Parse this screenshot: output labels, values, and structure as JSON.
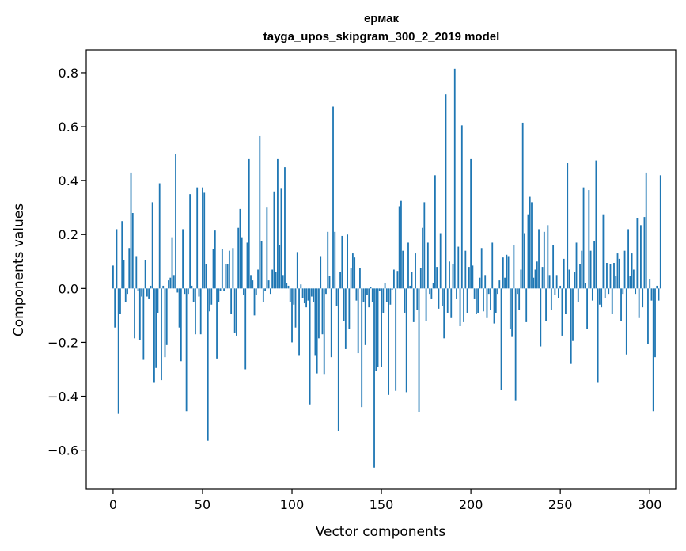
{
  "chart_data": {
    "type": "bar",
    "title": "ермак",
    "subtitle": "tayga_upos_skipgram_300_2_2019 model",
    "xlabel": "Vector components",
    "ylabel": "Components values",
    "xlim": [
      -15,
      314.5
    ],
    "ylim": [
      -0.745,
      0.885
    ],
    "xticks": [
      0,
      50,
      100,
      150,
      200,
      250,
      300
    ],
    "yticks": [
      -0.6,
      -0.4,
      -0.2,
      0.0,
      0.2,
      0.4,
      0.6,
      0.8
    ],
    "ytick_labels": [
      "−0.6",
      "−0.4",
      "−0.2",
      "0.0",
      "0.2",
      "0.4",
      "0.6",
      "0.8"
    ],
    "bar_color": "#1f77b4",
    "values": [
      0.085,
      -0.145,
      0.22,
      -0.465,
      -0.095,
      0.25,
      0.105,
      -0.05,
      -0.02,
      0.15,
      0.43,
      0.28,
      -0.185,
      0.12,
      -0.01,
      -0.19,
      -0.03,
      -0.265,
      0.105,
      -0.03,
      -0.04,
      0.01,
      0.32,
      -0.35,
      -0.295,
      -0.09,
      0.39,
      -0.34,
      0.01,
      -0.255,
      -0.21,
      0.03,
      0.04,
      0.19,
      0.05,
      0.5,
      -0.015,
      -0.145,
      -0.27,
      0.22,
      -0.02,
      -0.455,
      -0.02,
      0.35,
      0.01,
      -0.05,
      -0.17,
      0.375,
      -0.03,
      -0.17,
      0.375,
      0.355,
      0.09,
      -0.565,
      -0.085,
      -0.06,
      0.145,
      0.215,
      -0.26,
      -0.05,
      -0.01,
      0.145,
      -0.01,
      0.09,
      0.09,
      0.14,
      -0.095,
      0.15,
      -0.165,
      -0.175,
      0.225,
      0.295,
      0.19,
      -0.025,
      -0.3,
      0.17,
      0.48,
      0.05,
      0.03,
      -0.1,
      -0.025,
      0.07,
      0.565,
      0.175,
      -0.05,
      -0.01,
      0.3,
      0.03,
      -0.02,
      0.07,
      0.36,
      0.06,
      0.48,
      0.16,
      0.37,
      0.05,
      0.45,
      0.02,
      0.01,
      -0.05,
      -0.2,
      -0.06,
      -0.145,
      0.135,
      -0.25,
      0.015,
      -0.035,
      -0.055,
      -0.07,
      -0.045,
      -0.43,
      -0.03,
      -0.05,
      -0.25,
      -0.315,
      -0.185,
      0.12,
      -0.17,
      -0.32,
      -0.02,
      0.21,
      0.045,
      -0.255,
      0.675,
      0.21,
      -0.065,
      -0.53,
      0.06,
      0.195,
      -0.12,
      -0.225,
      0.2,
      -0.15,
      0.075,
      0.13,
      0.115,
      -0.045,
      -0.24,
      0.075,
      -0.44,
      -0.05,
      -0.21,
      -0.025,
      -0.07,
      0.005,
      -0.05,
      -0.665,
      -0.305,
      -0.29,
      -0.01,
      -0.29,
      -0.09,
      0.02,
      -0.05,
      -0.395,
      -0.06,
      -0.005,
      0.07,
      -0.38,
      0.065,
      0.305,
      0.325,
      0.14,
      -0.09,
      -0.385,
      0.17,
      0.01,
      0.06,
      -0.125,
      0.13,
      -0.08,
      -0.46,
      0.075,
      0.225,
      0.32,
      -0.12,
      0.17,
      -0.02,
      -0.04,
      0.02,
      0.42,
      0.08,
      -0.075,
      0.205,
      -0.065,
      -0.185,
      0.72,
      -0.09,
      0.1,
      -0.11,
      0.09,
      0.815,
      -0.04,
      0.155,
      -0.14,
      0.605,
      -0.125,
      0.14,
      -0.09,
      0.08,
      0.48,
      0.085,
      -0.04,
      -0.095,
      -0.09,
      0.04,
      0.15,
      -0.085,
      0.05,
      -0.11,
      -0.02,
      -0.08,
      0.17,
      -0.13,
      -0.09,
      -0.02,
      0.03,
      -0.375,
      0.115,
      0.04,
      0.125,
      0.12,
      -0.15,
      -0.18,
      0.16,
      -0.415,
      -0.02,
      -0.08,
      0.07,
      0.615,
      0.205,
      -0.125,
      0.275,
      0.34,
      0.32,
      0.04,
      0.07,
      0.1,
      0.22,
      -0.215,
      0.08,
      0.21,
      -0.12,
      0.235,
      0.05,
      -0.08,
      0.16,
      -0.025,
      0.05,
      -0.035,
      0.01,
      -0.175,
      0.11,
      -0.095,
      0.465,
      0.07,
      -0.28,
      -0.195,
      0.06,
      0.17,
      -0.05,
      0.09,
      0.14,
      0.375,
      0.02,
      -0.15,
      0.365,
      0.14,
      -0.045,
      0.175,
      0.475,
      -0.35,
      -0.06,
      -0.07,
      0.275,
      -0.035,
      0.095,
      -0.02,
      0.09,
      -0.095,
      0.095,
      0.045,
      0.13,
      0.11,
      -0.12,
      -0.02,
      0.14,
      -0.245,
      0.22,
      0.045,
      0.13,
      0.07,
      -0.02,
      0.26,
      -0.11,
      0.235,
      -0.07,
      0.265,
      0.43,
      -0.205,
      0.035,
      -0.045,
      -0.455,
      -0.255,
      0.01,
      -0.045,
      0.42
    ]
  }
}
